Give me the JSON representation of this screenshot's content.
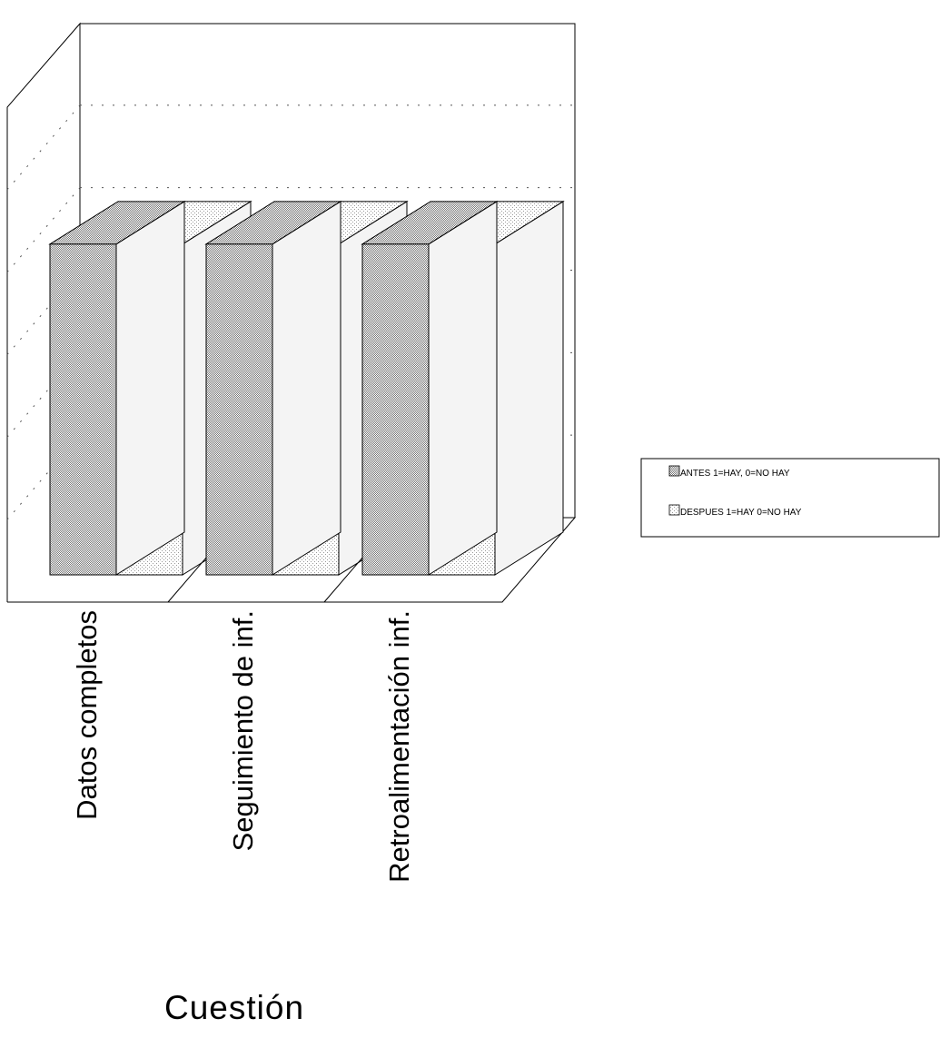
{
  "chart_data": {
    "type": "bar",
    "categories": [
      "Datos completos",
      "Seguimiento de inf.",
      "Retroalimentación inf."
    ],
    "series": [
      {
        "name": "ANTES 1=HAY, 0=NO HAY",
        "values": [
          1,
          1,
          1
        ]
      },
      {
        "name": "DESPUES 1=HAY 0=NO HAY",
        "values": [
          1,
          1,
          1
        ]
      }
    ],
    "xlabel": "Cuestión",
    "ylabel": "",
    "ylim": [
      0,
      1.2
    ],
    "grid": true,
    "legend": "right",
    "colors": {
      "antes": "#a8a8a8",
      "despues": "#c9c9c9",
      "line": "#000000",
      "grid": "#555555"
    }
  }
}
